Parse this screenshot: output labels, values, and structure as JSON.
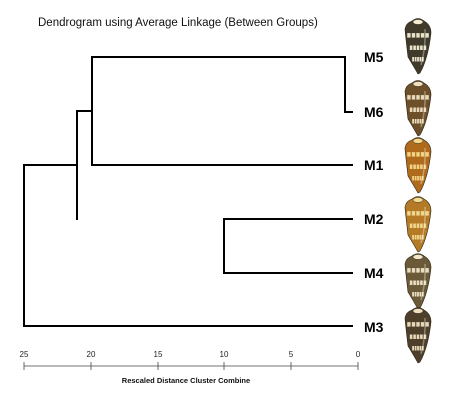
{
  "title": "Dendrogram using Average Linkage (Between Groups)",
  "axis": {
    "title": "Rescaled Distance Cluster Combine",
    "ticks": [
      "25",
      "20",
      "15",
      "10",
      "5",
      "0"
    ]
  },
  "leaves": [
    "M5",
    "M6",
    "M1",
    "M2",
    "M4",
    "M3"
  ],
  "shells": [
    {
      "name": "shell-m5-icon",
      "base": "#3f3a2a",
      "band": "#f3ecd2"
    },
    {
      "name": "shell-m6-icon",
      "base": "#6d4f2a",
      "band": "#efe2c0"
    },
    {
      "name": "shell-m1-icon",
      "base": "#b06a1c",
      "band": "#f4d98a"
    },
    {
      "name": "shell-m2-icon",
      "base": "#b57a25",
      "band": "#f2dc95"
    },
    {
      "name": "shell-m4-icon",
      "base": "#6a5a38",
      "band": "#f1e6c8"
    },
    {
      "name": "shell-m3-icon",
      "base": "#4e3f2b",
      "band": "#eee0c0"
    }
  ]
}
